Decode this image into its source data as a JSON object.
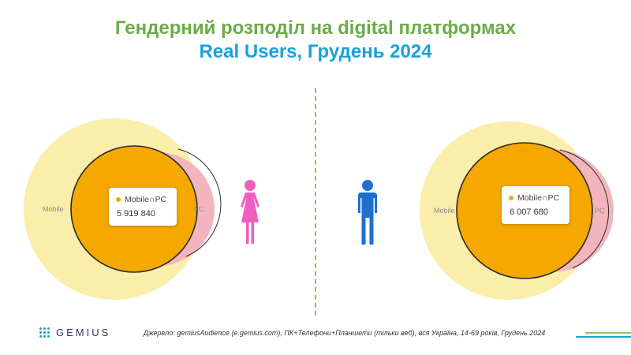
{
  "title": {
    "line1": "Гендерний розподіл на digital платформах",
    "line2": "Real Users, Грудень 2024"
  },
  "colors": {
    "title_line1": "#6aac47",
    "title_line2": "#1aa1dc",
    "mobile": "#fbeeab",
    "pc": "#f2b5bd",
    "intersection": "#f5a800",
    "female_icon": "#ee5fbf",
    "male_icon": "#1f6fd0"
  },
  "female": {
    "icon": "female-person-icon",
    "mobile_label": "Mobile",
    "pc_label": "PC",
    "intersection_label": "Mobile∩PC",
    "intersection_value": "5 919 840"
  },
  "male": {
    "icon": "male-person-icon",
    "mobile_label": "Mobile",
    "pc_label": "PC",
    "intersection_label": "Mobile∩PC",
    "intersection_value": "6 007 680"
  },
  "footer": {
    "logo_text": "GEMIUS",
    "source": "Джерело: gemiusAudience (e.gemius.com), ПК+Телефони+Планшети (тільки веб), вся Україна, 14-69 років, Грудень 2024"
  }
}
